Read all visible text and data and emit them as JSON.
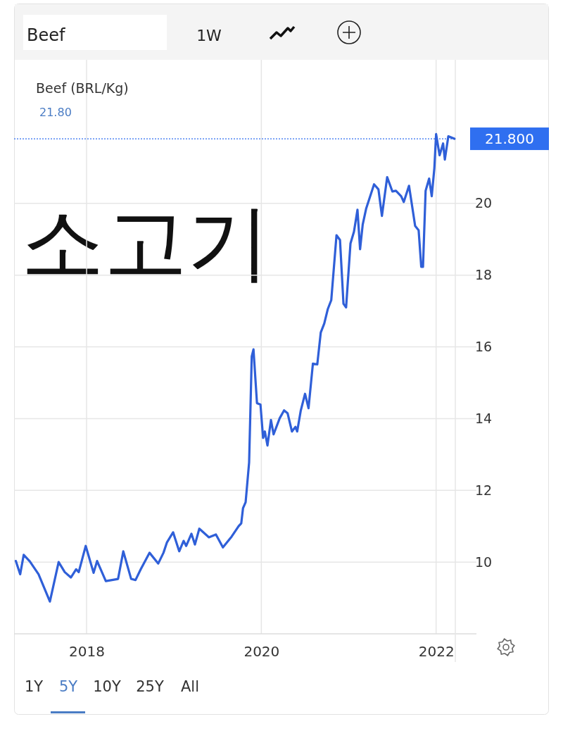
{
  "chart_data": {
    "type": "line",
    "title": "Beef (BRL/Kg)",
    "subtitle": "21.80",
    "annotations": [
      "소고기",
      "Beef",
      "1W",
      "1Y",
      "5Y",
      "10Y",
      "25Y",
      "All"
    ],
    "x": [
      2017.19,
      2017.24,
      2017.28,
      2017.35,
      2017.45,
      2017.58,
      2017.68,
      2017.75,
      2017.82,
      2017.88,
      2017.91,
      2017.99,
      2018.08,
      2018.12,
      2018.22,
      2018.36,
      2018.42,
      2018.51,
      2018.56,
      2018.62,
      2018.72,
      2018.82,
      2018.88,
      2018.92,
      2018.99,
      2019.06,
      2019.11,
      2019.14,
      2019.2,
      2019.24,
      2019.29,
      2019.4,
      2019.48,
      2019.56,
      2019.66,
      2019.74,
      2019.77,
      2019.79,
      2019.82,
      2019.86,
      2019.89,
      2019.91,
      2019.95,
      2019.99,
      2020.02,
      2020.04,
      2020.07,
      2020.11,
      2020.14,
      2020.21,
      2020.26,
      2020.3,
      2020.35,
      2020.39,
      2020.41,
      2020.45,
      2020.5,
      2020.54,
      2020.59,
      2020.64,
      2020.68,
      2020.72,
      2020.76,
      2020.8,
      2020.86,
      2020.9,
      2020.94,
      2020.97,
      2021.02,
      2021.06,
      2021.1,
      2021.13,
      2021.16,
      2021.2,
      2021.29,
      2021.34,
      2021.38,
      2021.44,
      2021.5,
      2021.54,
      2021.6,
      2021.63,
      2021.69,
      2021.76,
      2021.8,
      2021.83,
      2021.85,
      2021.88,
      2021.92,
      2021.95,
      2021.98,
      2022.0,
      2022.04,
      2022.08,
      2022.1,
      2022.14,
      2022.21
    ],
    "series": [
      {
        "color": "#2f5fd8",
        "values": [
          10.03,
          9.66,
          10.2,
          10.02,
          9.66,
          8.9,
          10.0,
          9.72,
          9.57,
          9.8,
          9.72,
          10.45,
          9.7,
          10.03,
          9.47,
          9.53,
          10.3,
          9.53,
          9.5,
          9.8,
          10.26,
          9.96,
          10.26,
          10.55,
          10.83,
          10.3,
          10.59,
          10.45,
          10.79,
          10.49,
          10.93,
          10.69,
          10.77,
          10.41,
          10.71,
          11.0,
          11.08,
          11.5,
          11.67,
          12.78,
          15.73,
          15.93,
          14.43,
          14.39,
          13.46,
          13.64,
          13.25,
          13.96,
          13.56,
          14.01,
          14.23,
          14.15,
          13.64,
          13.77,
          13.64,
          14.21,
          14.69,
          14.29,
          15.53,
          15.51,
          16.4,
          16.65,
          17.05,
          17.3,
          19.11,
          18.98,
          17.2,
          17.1,
          18.88,
          19.21,
          19.82,
          18.72,
          19.41,
          19.86,
          20.53,
          20.39,
          19.65,
          20.73,
          20.33,
          20.35,
          20.2,
          20.04,
          20.49,
          19.37,
          19.25,
          18.23,
          18.23,
          20.35,
          20.69,
          20.2,
          20.98,
          21.93,
          21.34,
          21.67,
          21.22,
          21.87,
          21.8
        ]
      }
    ],
    "xlim": [
      2017.17,
      2022.22
    ],
    "xticks": [
      2018,
      2020,
      2022
    ],
    "ylim": [
      8,
      24
    ],
    "yticks": [
      10,
      12,
      14,
      16,
      18,
      20
    ],
    "grid": true,
    "marker": "none",
    "line_style": "solid",
    "ref_lines": [
      {
        "axis": "y",
        "value": 21.8,
        "label": "21.800",
        "color": "#2f6ff0",
        "line_style": "dotted"
      }
    ]
  }
}
